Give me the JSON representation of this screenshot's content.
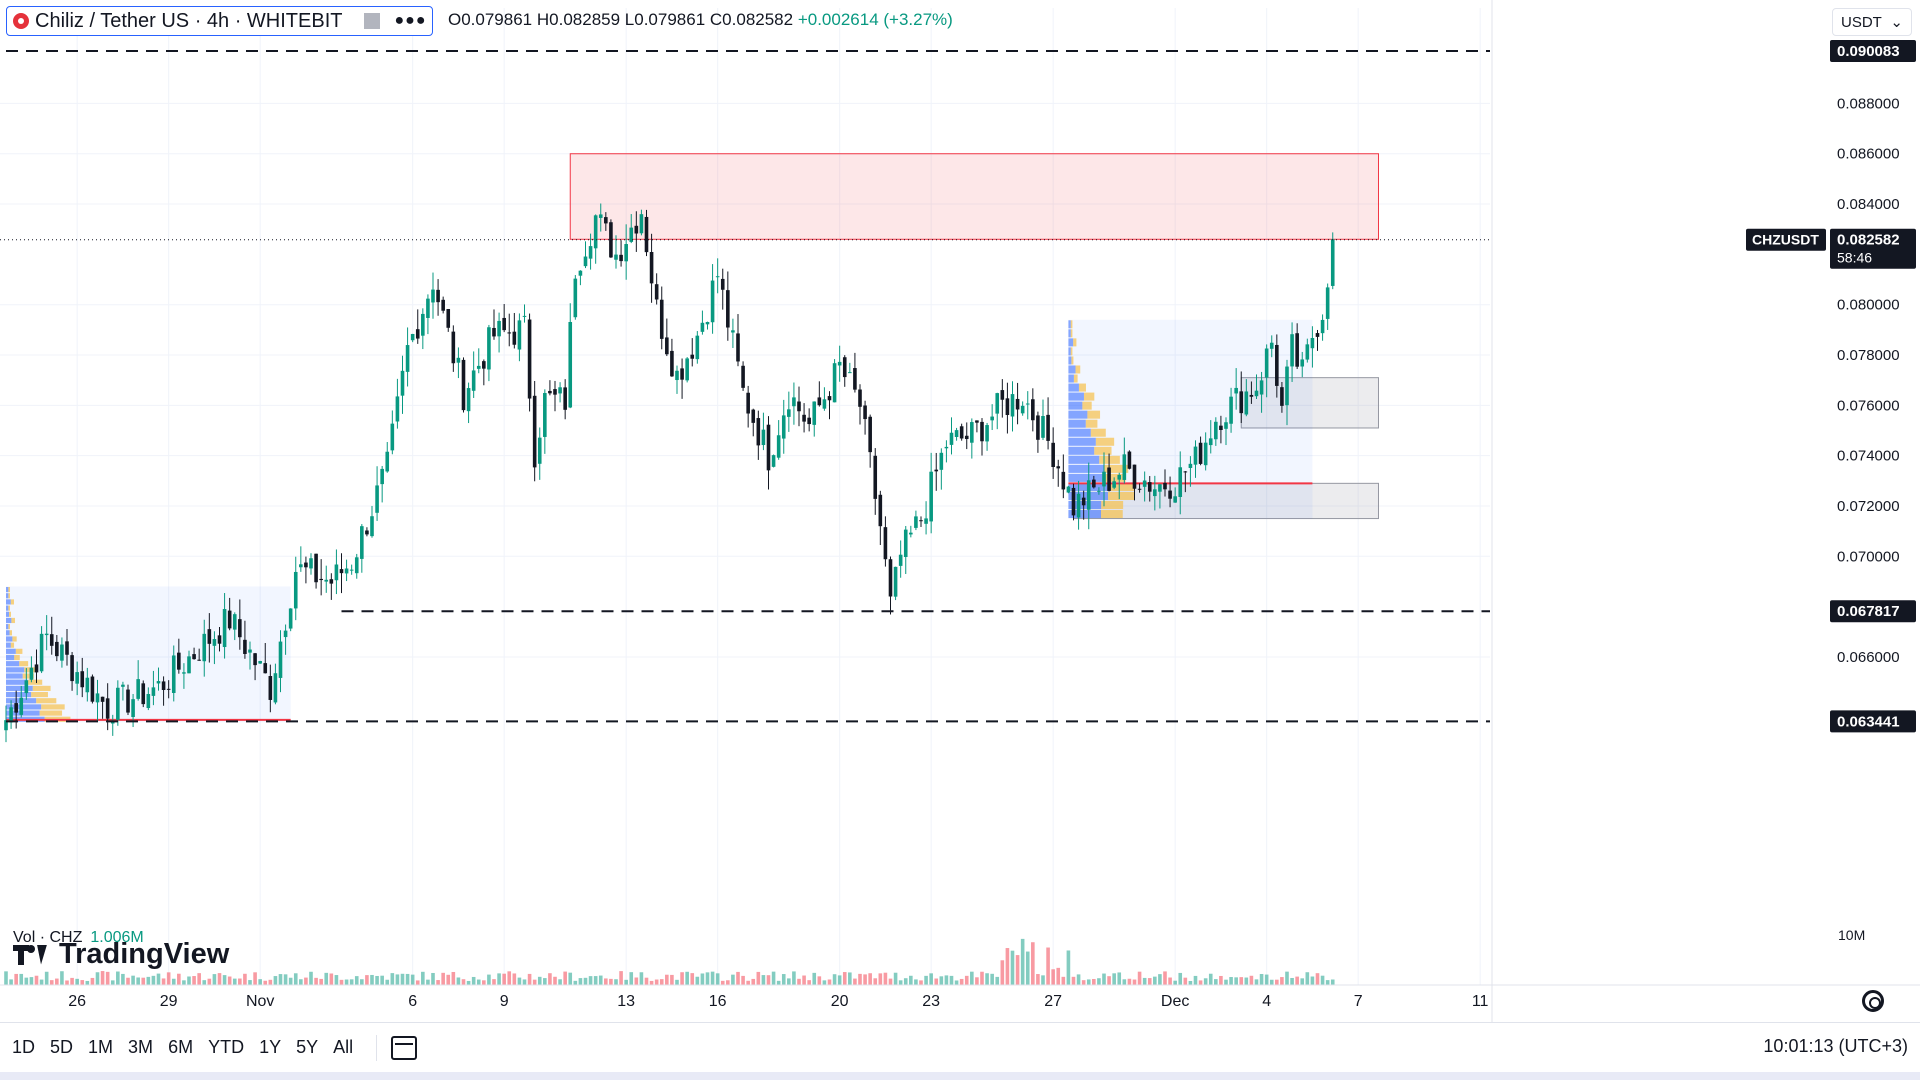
{
  "header": {
    "symbol_title": "Chiliz / Tether US · 4h · WHITEBIT",
    "ohlc_open": "O0.079861",
    "ohlc_high": "H0.082859",
    "ohlc_low": "L0.079861",
    "ohlc_close": "C0.082582",
    "ohlc_change": "+0.002614 (+3.27%)",
    "currency": "USDT",
    "menu_dots": "●●●"
  },
  "volume": {
    "label": "Vol · CHZ",
    "value": "1.006M",
    "axis_label": "10M"
  },
  "branding": {
    "logo_text": "TradingView"
  },
  "bottom_bar": {
    "ranges": [
      "1D",
      "5D",
      "1M",
      "3M",
      "6M",
      "YTD",
      "1Y",
      "5Y",
      "All"
    ],
    "clock": "10:01:13 (UTC+3)"
  },
  "colors": {
    "up": "#089981",
    "down": "#131722",
    "zone_red": "#f23645",
    "zone_gray": "#9598a1",
    "profile_blue": "#2962ff",
    "profile_yellow": "#f7c04a"
  },
  "chart_data": {
    "type": "candlestick",
    "symbol": "CHZUSDT",
    "timeframe": "4h",
    "last_price": "0.082582",
    "countdown": "58:46",
    "y_ticks": [
      "0.088000",
      "0.086000",
      "0.084000",
      "0.080000",
      "0.078000",
      "0.076000",
      "0.074000",
      "0.072000",
      "0.070000",
      "0.066000"
    ],
    "ylim": [
      0.0625,
      0.0906
    ],
    "x_ticks": [
      {
        "label": "26",
        "index": 14
      },
      {
        "label": "29",
        "index": 32
      },
      {
        "label": "Nov",
        "index": 50
      },
      {
        "label": "6",
        "index": 80
      },
      {
        "label": "9",
        "index": 98
      },
      {
        "label": "13",
        "index": 122
      },
      {
        "label": "16",
        "index": 140
      },
      {
        "label": "20",
        "index": 164
      },
      {
        "label": "23",
        "index": 182
      },
      {
        "label": "27",
        "index": 206
      },
      {
        "label": "Dec",
        "index": 230
      },
      {
        "label": "4",
        "index": 248
      },
      {
        "label": "7",
        "index": 266
      },
      {
        "label": "11",
        "index": 290
      }
    ],
    "horizontal_levels": [
      {
        "price": 0.090083,
        "label": "0.090083",
        "style": "dashed",
        "x_start_index": 0
      },
      {
        "price": 0.067817,
        "label": "0.067817",
        "style": "dashed",
        "x_start_index": 66
      },
      {
        "price": 0.063441,
        "label": "0.063441",
        "style": "dashed",
        "x_start_index": 0
      }
    ],
    "zones": [
      {
        "type": "resistance",
        "color": "red",
        "x_from": 111,
        "x_to": 270,
        "y_from": 0.0826,
        "y_to": 0.086
      },
      {
        "type": "support",
        "color": "gray",
        "x_from": 243,
        "x_to": 270,
        "y_from": 0.0751,
        "y_to": 0.0771
      },
      {
        "type": "support",
        "color": "gray",
        "x_from": 210,
        "x_to": 270,
        "y_from": 0.0715,
        "y_to": 0.0729
      }
    ],
    "volume_profiles": [
      {
        "x_from": 0,
        "x_to": 56,
        "y_from": 0.0634,
        "y_to": 0.0688,
        "poc": 0.0635
      },
      {
        "x_from": 209,
        "x_to": 257,
        "y_from": 0.0715,
        "y_to": 0.0794,
        "poc": 0.0729
      }
    ],
    "key_points": [
      {
        "index": 0,
        "price": 0.0635
      },
      {
        "index": 8,
        "price": 0.0668
      },
      {
        "index": 20,
        "price": 0.064
      },
      {
        "index": 30,
        "price": 0.0648
      },
      {
        "index": 44,
        "price": 0.0675
      },
      {
        "index": 52,
        "price": 0.0648
      },
      {
        "index": 57,
        "price": 0.0695
      },
      {
        "index": 64,
        "price": 0.069
      },
      {
        "index": 68,
        "price": 0.0698
      },
      {
        "index": 75,
        "price": 0.0735
      },
      {
        "index": 79,
        "price": 0.0782
      },
      {
        "index": 84,
        "price": 0.081
      },
      {
        "index": 90,
        "price": 0.0765
      },
      {
        "index": 96,
        "price": 0.0788
      },
      {
        "index": 102,
        "price": 0.079
      },
      {
        "index": 104,
        "price": 0.0742
      },
      {
        "index": 106,
        "price": 0.0762
      },
      {
        "index": 110,
        "price": 0.0762
      },
      {
        "index": 112,
        "price": 0.0815
      },
      {
        "index": 116,
        "price": 0.0835
      },
      {
        "index": 120,
        "price": 0.082
      },
      {
        "index": 125,
        "price": 0.0838
      },
      {
        "index": 128,
        "price": 0.0798
      },
      {
        "index": 132,
        "price": 0.0772
      },
      {
        "index": 136,
        "price": 0.0788
      },
      {
        "index": 140,
        "price": 0.0812
      },
      {
        "index": 145,
        "price": 0.0765
      },
      {
        "index": 150,
        "price": 0.074
      },
      {
        "index": 154,
        "price": 0.0765
      },
      {
        "index": 158,
        "price": 0.0752
      },
      {
        "index": 164,
        "price": 0.0775
      },
      {
        "index": 168,
        "price": 0.076
      },
      {
        "index": 172,
        "price": 0.0712
      },
      {
        "index": 174,
        "price": 0.068
      },
      {
        "index": 176,
        "price": 0.07
      },
      {
        "index": 180,
        "price": 0.0715
      },
      {
        "index": 185,
        "price": 0.0745
      },
      {
        "index": 190,
        "price": 0.0748
      },
      {
        "index": 196,
        "price": 0.076
      },
      {
        "index": 200,
        "price": 0.0764
      },
      {
        "index": 206,
        "price": 0.0742
      },
      {
        "index": 210,
        "price": 0.072
      },
      {
        "index": 214,
        "price": 0.0726
      },
      {
        "index": 220,
        "price": 0.0735
      },
      {
        "index": 226,
        "price": 0.0728
      },
      {
        "index": 230,
        "price": 0.073
      },
      {
        "index": 234,
        "price": 0.0738
      },
      {
        "index": 238,
        "price": 0.0755
      },
      {
        "index": 242,
        "price": 0.0762
      },
      {
        "index": 246,
        "price": 0.0768
      },
      {
        "index": 249,
        "price": 0.0785
      },
      {
        "index": 251,
        "price": 0.0758
      },
      {
        "index": 253,
        "price": 0.0782
      },
      {
        "index": 255,
        "price": 0.0772
      },
      {
        "index": 257,
        "price": 0.0788
      },
      {
        "index": 259,
        "price": 0.0798
      },
      {
        "index": 261,
        "price": 0.0826
      }
    ]
  }
}
